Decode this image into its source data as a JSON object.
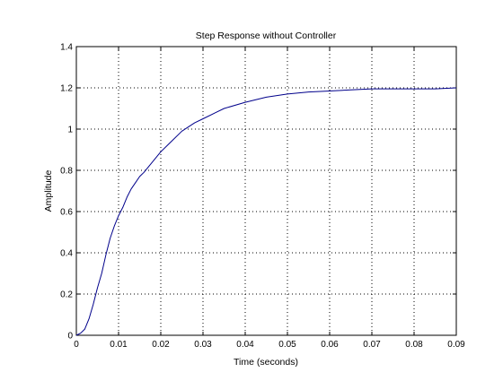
{
  "chart_data": {
    "type": "line",
    "title": "Step Response without Controller",
    "xlabel": "Time (seconds)",
    "ylabel": "Amplitude",
    "xlim": [
      0,
      0.09
    ],
    "ylim": [
      0,
      1.4
    ],
    "xticks": [
      0,
      0.01,
      0.02,
      0.03,
      0.04,
      0.05,
      0.06,
      0.07,
      0.08,
      0.09
    ],
    "xtick_labels": [
      "0",
      "0.01",
      "0.02",
      "0.03",
      "0.04",
      "0.05",
      "0.06",
      "0.07",
      "0.08",
      "0.09"
    ],
    "yticks": [
      0,
      0.2,
      0.4,
      0.6,
      0.8,
      1.0,
      1.2,
      1.4
    ],
    "ytick_labels": [
      "0",
      "0.2",
      "0.4",
      "0.6",
      "0.8",
      "1",
      "1.2",
      "1.4"
    ],
    "grid": true,
    "line_color": "#00008B",
    "series": [
      {
        "x": [
          0,
          0.001,
          0.002,
          0.003,
          0.004,
          0.005,
          0.006,
          0.007,
          0.008,
          0.009,
          0.01,
          0.011,
          0.012,
          0.013,
          0.014,
          0.015,
          0.016,
          0.018,
          0.02,
          0.022,
          0.025,
          0.028,
          0.03,
          0.033,
          0.035,
          0.04,
          0.045,
          0.05,
          0.055,
          0.06,
          0.065,
          0.07,
          0.075,
          0.08,
          0.085,
          0.09
        ],
        "y": [
          0,
          0.01,
          0.03,
          0.08,
          0.15,
          0.23,
          0.3,
          0.39,
          0.47,
          0.53,
          0.58,
          0.62,
          0.67,
          0.71,
          0.74,
          0.77,
          0.79,
          0.84,
          0.89,
          0.93,
          0.99,
          1.03,
          1.05,
          1.08,
          1.1,
          1.13,
          1.155,
          1.17,
          1.18,
          1.185,
          1.19,
          1.195,
          1.195,
          1.195,
          1.195,
          1.2
        ]
      }
    ]
  }
}
